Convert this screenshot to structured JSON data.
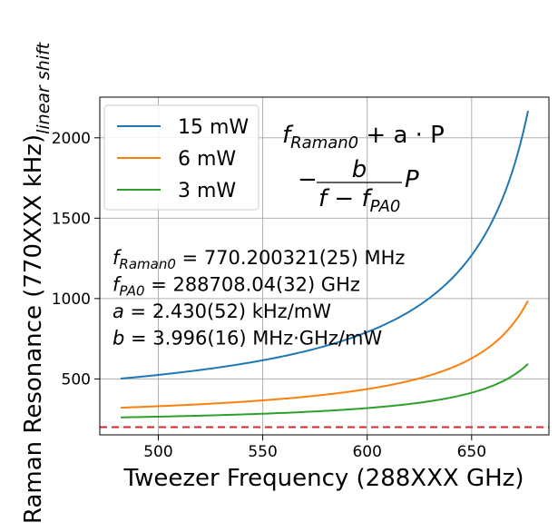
{
  "chart_data": {
    "type": "line",
    "xlabel": "Tweezer Frequency (288XXX GHz)",
    "ylabel_main": "Raman Resonance (770XXX kHz)",
    "ylabel_sub": "linear shift",
    "xlim": [
      472,
      687
    ],
    "ylim": [
      152,
      2253
    ],
    "xticks": [
      500,
      550,
      600,
      650
    ],
    "yticks": [
      500,
      1000,
      1500,
      2000
    ],
    "grid": true,
    "legend_position": "top-left",
    "model": {
      "f_raman0_khz": 200.321,
      "f_pa0": 708.04,
      "a": 2.43,
      "b": 3.996,
      "x_start": 482,
      "x_end": 677
    },
    "series": [
      {
        "name": "15 mW",
        "power_mw": 15,
        "color": "#1f77b4"
      },
      {
        "name": "6 mW",
        "power_mw": 6,
        "color": "#ff7f0e"
      },
      {
        "name": "3 mW",
        "power_mw": 3,
        "color": "#2ca02c"
      }
    ],
    "reference_line": {
      "y": 200,
      "color": "#d62728",
      "style": "dashed"
    },
    "equation": {
      "line1": {
        "f": "f",
        "sub": "Raman0",
        "rest": " + a · P"
      },
      "line2": {
        "minus": "−",
        "num": "b",
        "den_f": "f − f",
        "den_sub": "PA0",
        "rest": " · P"
      }
    },
    "parameters": [
      {
        "sym": "f",
        "sub": "Raman0",
        "eq": " = 770.200321(25) MHz"
      },
      {
        "sym": "f",
        "sub": "PA0",
        "eq": " = 288708.04(32) GHz"
      },
      {
        "sym": "a",
        "sub": "",
        "eq": " = 2.430(52) kHz/mW"
      },
      {
        "sym": "b",
        "sub": "",
        "eq": " = 3.996(16) MHz·GHz/mW"
      }
    ]
  }
}
